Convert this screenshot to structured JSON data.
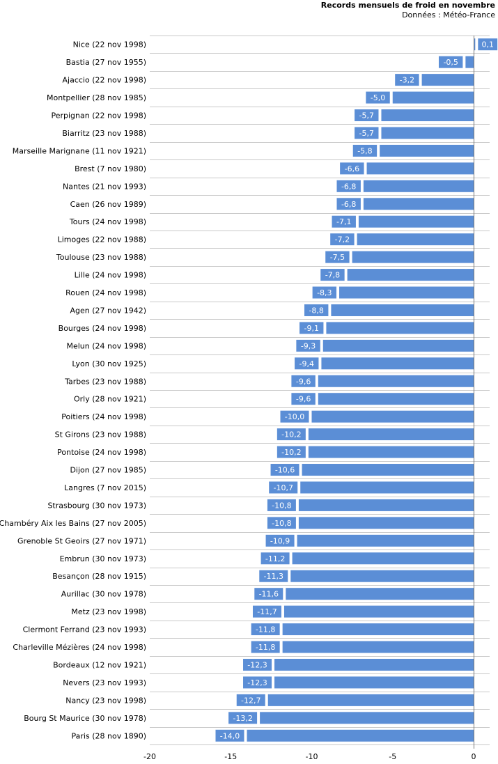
{
  "chart_data": {
    "type": "bar",
    "orientation": "horizontal",
    "title": "Records mensuels de froid en novembre",
    "subtitle": "Données : Météo-France",
    "xlim": [
      -20,
      1
    ],
    "xticks": [
      -20,
      -15,
      -10,
      -5,
      0
    ],
    "grid": "horizontal lines between bars",
    "colors": {
      "bar": "#5b8ed6",
      "label_box": "#5b8ed6",
      "label_text": "#ffffff"
    },
    "categories": [
      "Nice (22 nov 1998)",
      "Bastia (27 nov 1955)",
      "Ajaccio (22 nov 1998)",
      "Montpellier (28 nov 1985)",
      "Perpignan (22 nov 1998)",
      "Biarritz (23 nov 1988)",
      "Marseille Marignane (11 nov 1921)",
      "Brest (7 nov 1980)",
      "Nantes (21 nov 1993)",
      "Caen (26 nov 1989)",
      "Tours (24 nov 1998)",
      "Limoges (22 nov 1988)",
      "Toulouse (23 nov 1988)",
      "Lille (24 nov 1998)",
      "Rouen (24 nov 1998)",
      "Agen (27 nov 1942)",
      "Bourges (24 nov 1998)",
      "Melun (24 nov 1998)",
      "Lyon (30 nov 1925)",
      "Tarbes (23 nov 1988)",
      "Orly (28 nov 1921)",
      "Poitiers (24 nov 1998)",
      "St Girons (23 nov 1988)",
      "Pontoise (24 nov 1998)",
      "Dijon (27 nov 1985)",
      "Langres (7 nov 2015)",
      "Strasbourg (30 nov 1973)",
      "Chambéry Aix les Bains (27 nov 2005)",
      "Grenoble St Geoirs (27 nov 1971)",
      "Embrun (30 nov 1973)",
      "Besançon (28 nov 1915)",
      "Aurillac (30 nov 1978)",
      "Metz (23 nov 1998)",
      "Clermont Ferrand (23 nov 1993)",
      "Charleville Mézières (24 nov 1998)",
      "Bordeaux (12 nov 1921)",
      "Nevers (23 nov 1993)",
      "Nancy (23 nov 1998)",
      "Bourg St Maurice (30 nov 1978)",
      "Paris (28 nov 1890)"
    ],
    "values": [
      0.1,
      -0.5,
      -3.2,
      -5.0,
      -5.7,
      -5.7,
      -5.8,
      -6.6,
      -6.8,
      -6.8,
      -7.1,
      -7.2,
      -7.5,
      -7.8,
      -8.3,
      -8.8,
      -9.1,
      -9.3,
      -9.4,
      -9.6,
      -9.6,
      -10.0,
      -10.2,
      -10.2,
      -10.6,
      -10.7,
      -10.8,
      -10.8,
      -10.9,
      -11.2,
      -11.3,
      -11.6,
      -11.7,
      -11.8,
      -11.8,
      -12.3,
      -12.3,
      -12.7,
      -13.2,
      -14.0
    ],
    "value_labels": [
      "0,1",
      "-0,5",
      "-3,2",
      "-5,0",
      "-5,7",
      "-5,7",
      "-5,8",
      "-6,6",
      "-6,8",
      "-6,8",
      "-7,1",
      "-7,2",
      "-7,5",
      "-7,8",
      "-8,3",
      "-8,8",
      "-9,1",
      "-9,3",
      "-9,4",
      "-9,6",
      "-9,6",
      "-10,0",
      "-10,2",
      "-10,2",
      "-10,6",
      "-10,7",
      "-10,8",
      "-10,8",
      "-10,9",
      "-11,2",
      "-11,3",
      "-11,6",
      "-11,7",
      "-11,8",
      "-11,8",
      "-12,3",
      "-12,3",
      "-12,7",
      "-13,2",
      "-14,0"
    ]
  }
}
